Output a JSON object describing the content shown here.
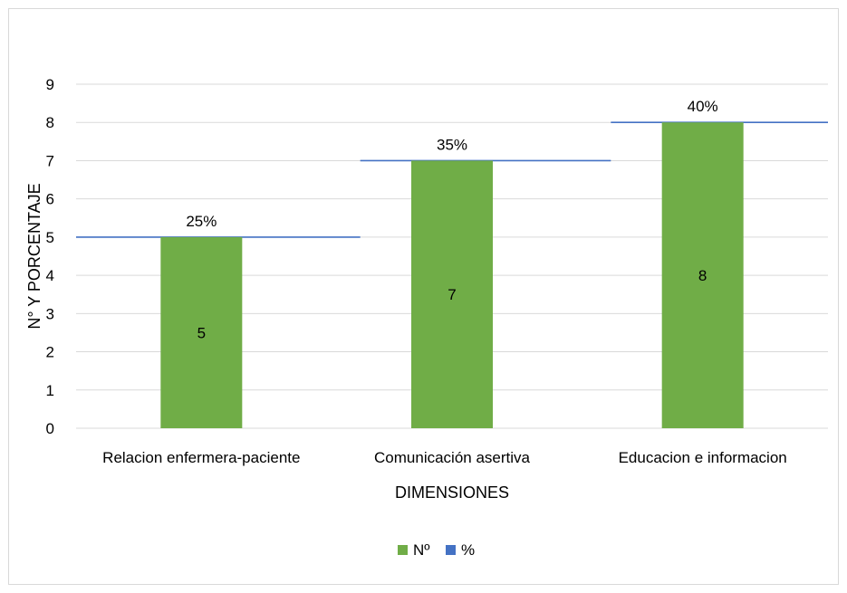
{
  "chart_data": {
    "type": "bar",
    "categories": [
      "Relacion enfermera-paciente",
      "Comunicación asertiva",
      "Educacion e informacion"
    ],
    "series": [
      {
        "name": "Nº",
        "values": [
          5,
          7,
          8
        ],
        "labels": [
          "5",
          "7",
          "8"
        ],
        "color": "#70AD47"
      },
      {
        "name": "%",
        "values": [
          5,
          7,
          8
        ],
        "labels": [
          "25%",
          "35%",
          "40%"
        ],
        "color": "#4472C4",
        "style": "step-line"
      }
    ],
    "xlabel": "DIMENSIONES",
    "ylabel": "N° Y PORCENTAJE",
    "ylim": [
      0,
      9
    ],
    "yticks": [
      "0",
      "1",
      "2",
      "3",
      "4",
      "5",
      "6",
      "7",
      "8",
      "9"
    ],
    "grid": true,
    "gridline_color": "#d9d9d9",
    "legend_position": "bottom"
  }
}
